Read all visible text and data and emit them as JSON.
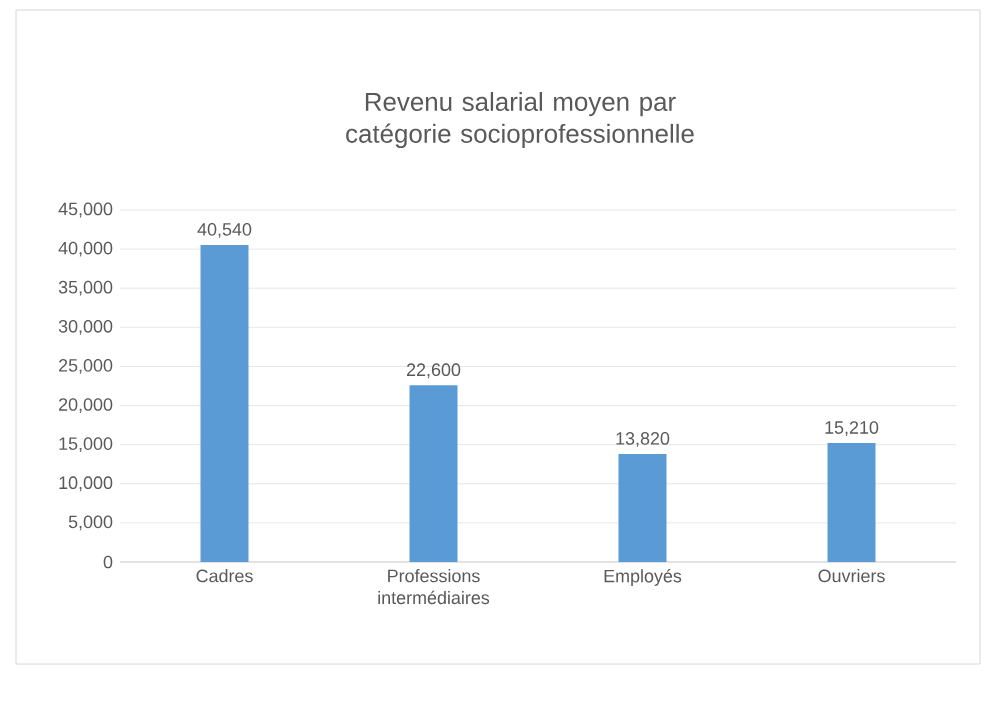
{
  "chart_data": {
    "type": "bar",
    "title": "Revenu salarial moyen par catégorie socioprofessionnelle",
    "categories": [
      "Cadres",
      "Professions intermédiaires",
      "Employés",
      "Ouvriers"
    ],
    "values": [
      40540,
      22600,
      13820,
      15210
    ],
    "color": "#5b9bd5",
    "ylim": [
      0,
      45000
    ],
    "yticks": [
      {
        "value": 0,
        "label": "0"
      },
      {
        "value": 5000,
        "label": "5,000"
      },
      {
        "value": 10000,
        "label": "10,000"
      },
      {
        "value": 15000,
        "label": "15,000"
      },
      {
        "value": 20000,
        "label": "20,000"
      },
      {
        "value": 25000,
        "label": "25,000"
      },
      {
        "value": 30000,
        "label": "30,000"
      },
      {
        "value": 35000,
        "label": "35,000"
      },
      {
        "value": 40000,
        "label": "40,000"
      },
      {
        "value": 45000,
        "label": "45,000"
      }
    ],
    "value_labels": [
      "40,540",
      "22,600",
      "13,820",
      "15,210"
    ],
    "grid": "y"
  }
}
